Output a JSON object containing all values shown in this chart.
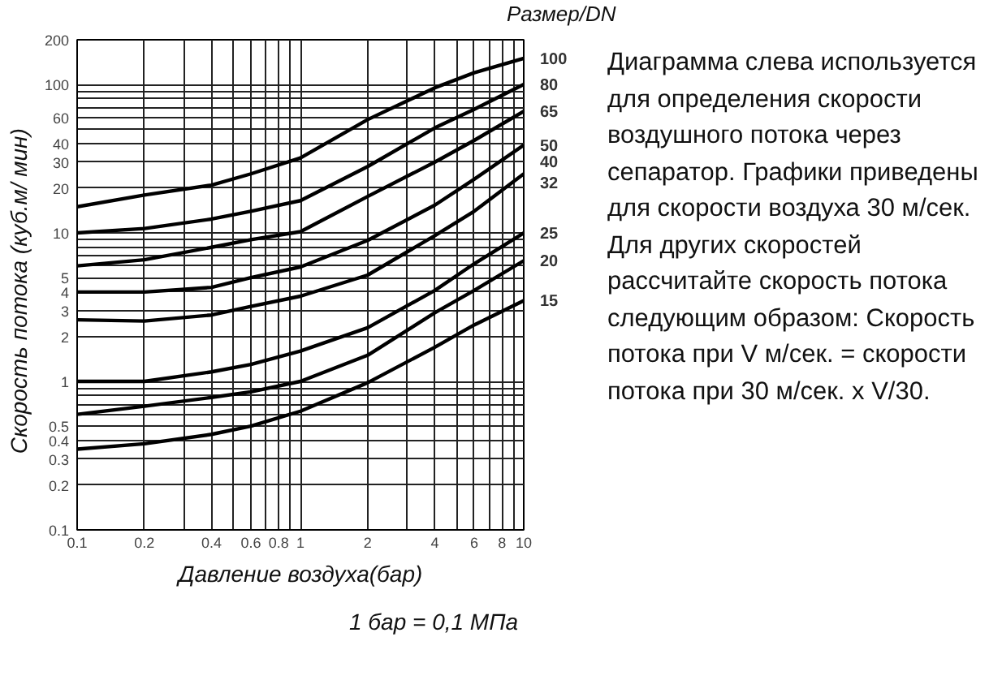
{
  "chart_data": {
    "type": "line",
    "xlabel": "Давление воздуха(бар)",
    "ylabel": "Скорость потока   (куб.м/ мин)",
    "legend_title": "Размер/DN",
    "annotations": [
      "1 бар = 0,1 МПа",
      "Диаграмма слева используется  для определения скорости воздушного потока через сепаратор. Графики приведены для скорости воздуха 30 м/сек. Для других скоростей рассчитайте скорость потока следующим образом: Скорость потока при V м/сек. = скорости потока при 30 м/сек. x V/30."
    ],
    "x": [
      0.1,
      0.2,
      0.4,
      0.6,
      1,
      2,
      4,
      6,
      10
    ],
    "series": [
      {
        "name": "100",
        "color": "#000000",
        "values": [
          15,
          18,
          21,
          25,
          32,
          58,
          95,
          120,
          150
        ]
      },
      {
        "name": "80",
        "color": "#000000",
        "values": [
          10,
          10.7,
          12.4,
          14,
          16.5,
          28,
          51,
          68,
          100
        ]
      },
      {
        "name": "65",
        "color": "#000000",
        "values": [
          6,
          6.6,
          8,
          9,
          10.2,
          17.6,
          30,
          42,
          66
        ]
      },
      {
        "name": "50",
        "color": "#000000",
        "values": [
          4,
          4,
          4.3,
          5,
          5.9,
          8.9,
          15.4,
          23,
          39
        ]
      },
      {
        "name": "40\n32",
        "color": "#000000",
        "values": [
          2.6,
          2.55,
          2.8,
          3.2,
          3.75,
          5.2,
          9.6,
          14,
          25
        ]
      },
      {
        "name": "25",
        "color": "#000000",
        "values": [
          1,
          1,
          1.16,
          1.3,
          1.6,
          2.3,
          4.1,
          6.2,
          10
        ]
      },
      {
        "name": "20",
        "color": "#000000",
        "values": [
          0.6,
          0.68,
          0.78,
          0.85,
          1,
          1.5,
          2.9,
          4.1,
          6.5
        ]
      },
      {
        "name": "15",
        "color": "#000000",
        "values": [
          0.35,
          0.38,
          0.44,
          0.5,
          0.63,
          0.98,
          1.7,
          2.4,
          3.5
        ]
      }
    ],
    "log": "xy",
    "xlim": [
      0.1,
      10
    ],
    "ylim": [
      0.1,
      200
    ],
    "xticks": [
      0.1,
      0.2,
      {
        "value": 0.3,
        "label": null
      },
      0.4,
      {
        "value": 0.5,
        "label": null
      },
      0.6,
      {
        "value": 0.7,
        "label": null
      },
      0.8,
      {
        "value": 0.9,
        "label": null
      },
      1,
      2,
      {
        "value": 3,
        "label": null
      },
      4,
      {
        "value": 5,
        "label": null
      },
      6,
      {
        "value": 7,
        "label": null
      },
      8,
      {
        "value": 9,
        "label": null
      },
      10
    ],
    "yticks": [
      0.1,
      0.2,
      0.3,
      0.4,
      0.5,
      {
        "value": 0.6,
        "label": null
      },
      {
        "value": 0.7,
        "label": null
      },
      {
        "value": 0.8,
        "label": null
      },
      {
        "value": 0.9,
        "label": null
      },
      1,
      2,
      3,
      4,
      5,
      {
        "value": 6,
        "label": null
      },
      {
        "value": 7,
        "label": null
      },
      {
        "value": 8,
        "label": null
      },
      {
        "value": 9,
        "label": null
      },
      10,
      20,
      30,
      40,
      {
        "value": 50,
        "label": null
      },
      60,
      {
        "value": 70,
        "label": null
      },
      {
        "value": 80,
        "label": null
      },
      {
        "value": 90,
        "label": null
      },
      100,
      200
    ],
    "grid": true,
    "marker": "none",
    "line_style": "solid"
  }
}
